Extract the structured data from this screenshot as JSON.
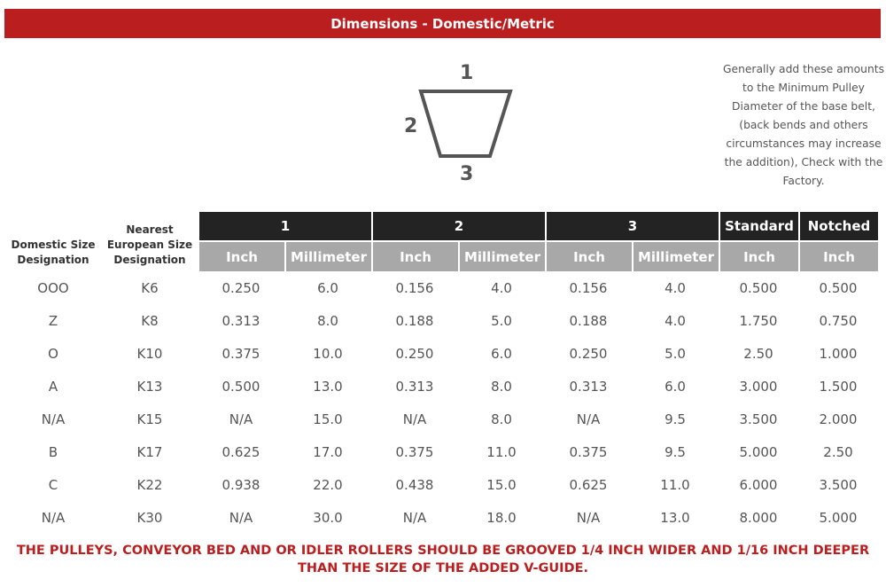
{
  "title": "Dimensions - Domestic/Metric",
  "diagram": {
    "label_top": "1",
    "label_side": "2",
    "label_bottom": "3"
  },
  "note": "Generally add these amounts to the Minimum Pulley Diameter of the base belt, (back bends and others circumstances may increase the addition), Check with the Factory.",
  "table": {
    "col_domestic": "Domestic Size Designation",
    "col_european": "Nearest European Size Designation",
    "groups": [
      "1",
      "2",
      "3",
      "Standard",
      "Notched"
    ],
    "subheaders": [
      "Inch",
      "Millimeter",
      "Inch",
      "Millimeter",
      "Inch",
      "Millimeter",
      "Inch",
      "Inch"
    ],
    "rows": [
      [
        "OOO",
        "K6",
        "0.250",
        "6.0",
        "0.156",
        "4.0",
        "0.156",
        "4.0",
        "0.500",
        "0.500"
      ],
      [
        "Z",
        "K8",
        "0.313",
        "8.0",
        "0.188",
        "5.0",
        "0.188",
        "4.0",
        "1.750",
        "0.750"
      ],
      [
        "O",
        "K10",
        "0.375",
        "10.0",
        "0.250",
        "6.0",
        "0.250",
        "5.0",
        "2.50",
        "1.000"
      ],
      [
        "A",
        "K13",
        "0.500",
        "13.0",
        "0.313",
        "8.0",
        "0.313",
        "6.0",
        "3.000",
        "1.500"
      ],
      [
        "N/A",
        "K15",
        "N/A",
        "15.0",
        "N/A",
        "8.0",
        "N/A",
        "9.5",
        "3.500",
        "2.000"
      ],
      [
        "B",
        "K17",
        "0.625",
        "17.0",
        "0.375",
        "11.0",
        "0.375",
        "9.5",
        "5.000",
        "2.50"
      ],
      [
        "C",
        "K22",
        "0.938",
        "22.0",
        "0.438",
        "15.0",
        "0.625",
        "11.0",
        "6.000",
        "3.500"
      ],
      [
        "N/A",
        "K30",
        "N/A",
        "30.0",
        "N/A",
        "18.0",
        "N/A",
        "13.0",
        "8.000",
        "5.000"
      ]
    ]
  },
  "footer_line1": "THE PULLEYS, CONVEYOR BED AND OR IDLER ROLLERS SHOULD BE GROOVED 1/4 INCH WIDER AND 1/16 INCH DEEPER",
  "footer_line2": "THAN THE SIZE OF THE ADDED V-GUIDE."
}
